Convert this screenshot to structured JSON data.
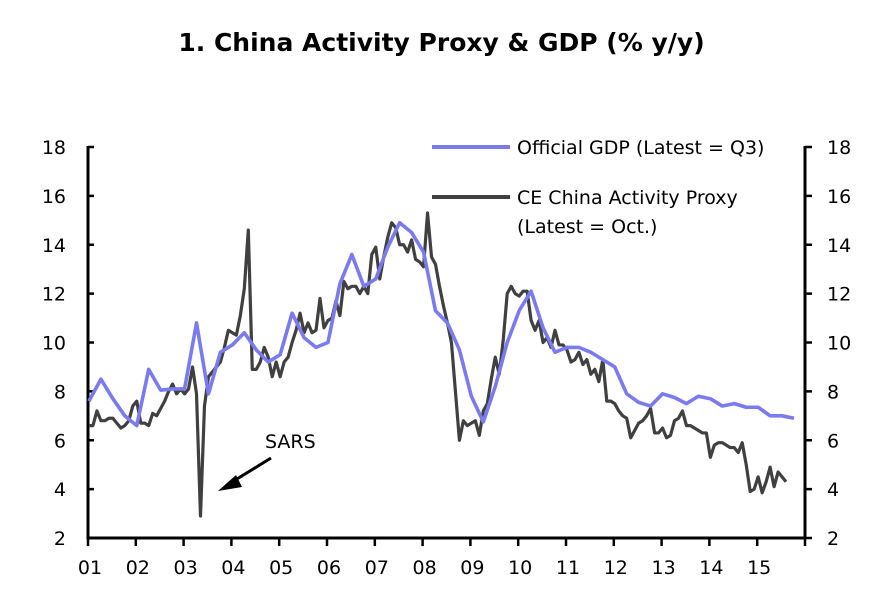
{
  "chart_data": {
    "type": "line",
    "title": "1. China Activity Proxy & GDP (% y/y)",
    "xlabel": "",
    "ylabel": "",
    "x_range": [
      "2001-01",
      "2015-12"
    ],
    "ylim": [
      2,
      18
    ],
    "y_ticks": [
      "2",
      "4",
      "6",
      "8",
      "10",
      "12",
      "14",
      "16",
      "18"
    ],
    "x_ticks": [
      "01",
      "02",
      "03",
      "04",
      "05",
      "06",
      "07",
      "08",
      "09",
      "10",
      "11",
      "12",
      "13",
      "14",
      "15"
    ],
    "grid": false,
    "legend_position": "top-right",
    "dual_axis": true,
    "annotation": {
      "text": "SARS",
      "target": "2003-05"
    },
    "series": [
      {
        "name": "Official GDP (Latest = Q3)",
        "color": "#7b7bf0",
        "frequency": "quarterly",
        "start": "2001-Q1",
        "values": [
          7.6,
          8.5,
          7.7,
          7.0,
          6.6,
          8.9,
          8.05,
          8.1,
          8.1,
          10.8,
          7.9,
          9.6,
          9.9,
          10.4,
          9.7,
          9.2,
          9.5,
          11.2,
          10.2,
          9.8,
          10.0,
          12.4,
          13.6,
          12.3,
          12.6,
          13.9,
          14.9,
          14.5,
          13.7,
          11.3,
          10.8,
          9.7,
          7.8,
          6.75,
          8.2,
          10.0,
          11.3,
          12.1,
          10.6,
          9.6,
          9.8,
          9.8,
          9.6,
          9.3,
          9.0,
          7.9,
          7.55,
          7.4,
          7.9,
          7.75,
          7.5,
          7.8,
          7.7,
          7.4,
          7.5,
          7.35,
          7.35,
          7.0,
          7.0,
          6.9
        ]
      },
      {
        "name": "CE China Activity Proxy",
        "name_line2": "(Latest = Oct.)",
        "color": "#404040",
        "frequency": "monthly",
        "start": "2001-01",
        "values": [
          6.6,
          6.6,
          7.2,
          6.8,
          6.8,
          6.9,
          6.9,
          6.7,
          6.5,
          6.6,
          6.8,
          7.4,
          7.6,
          6.7,
          6.7,
          6.6,
          7.1,
          7.0,
          7.3,
          7.6,
          8.0,
          8.3,
          7.9,
          8.1,
          7.9,
          8.1,
          9.0,
          7.9,
          2.9,
          7.4,
          8.6,
          8.8,
          9.0,
          9.2,
          9.8,
          10.5,
          10.4,
          10.3,
          11.1,
          12.2,
          14.6,
          8.9,
          8.9,
          9.2,
          9.8,
          9.4,
          8.6,
          9.2,
          8.6,
          9.2,
          9.4,
          10.0,
          10.5,
          11.2,
          10.4,
          10.8,
          10.4,
          10.5,
          11.8,
          10.6,
          10.9,
          11.0,
          11.7,
          11.1,
          12.5,
          12.2,
          12.3,
          12.3,
          12.0,
          12.3,
          12.0,
          13.6,
          13.9,
          12.6,
          13.5,
          14.3,
          14.9,
          14.7,
          14.0,
          14.0,
          13.7,
          14.2,
          13.4,
          13.3,
          13.1,
          15.3,
          13.5,
          13.2,
          12.3,
          11.5,
          10.8,
          10.0,
          8.0,
          6.0,
          6.8,
          6.6,
          6.7,
          6.8,
          6.2,
          7.2,
          7.5,
          8.5,
          9.4,
          8.7,
          10.1,
          12.0,
          12.3,
          12.0,
          11.9,
          12.1,
          12.1,
          10.9,
          10.5,
          10.9,
          10.0,
          10.2,
          9.8,
          10.5,
          9.9,
          9.9,
          9.7,
          9.2,
          9.3,
          9.6,
          9.1,
          9.3,
          8.7,
          8.9,
          8.4,
          9.3,
          7.6,
          7.6,
          7.5,
          7.2,
          7.0,
          6.9,
          6.1,
          6.4,
          6.7,
          6.8,
          7.0,
          7.3,
          6.3,
          6.3,
          6.5,
          6.1,
          6.2,
          6.8,
          6.9,
          7.2,
          6.6,
          6.6,
          6.5,
          6.4,
          6.3,
          6.3,
          5.3,
          5.8,
          5.9,
          5.9,
          5.8,
          5.7,
          5.7,
          5.5,
          5.9,
          5.0,
          3.9,
          4.0,
          4.5,
          3.85,
          4.3,
          4.9,
          4.1,
          4.7,
          4.5,
          4.3
        ]
      }
    ]
  }
}
